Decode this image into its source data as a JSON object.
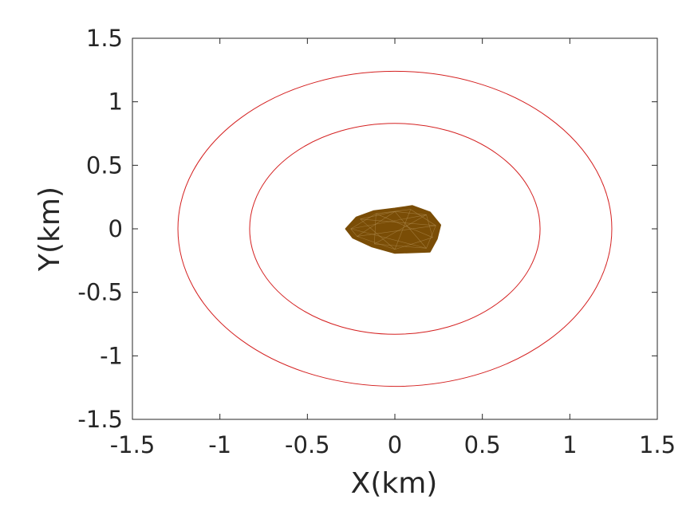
{
  "chart_data": {
    "type": "line",
    "xlabel": "X(km)",
    "ylabel": "Y(km)",
    "xlim": [
      -1.5,
      1.5
    ],
    "ylim": [
      -1.5,
      1.5
    ],
    "x_ticks": [
      -1.5,
      -1,
      -0.5,
      0,
      0.5,
      1,
      1.5
    ],
    "x_tick_labels": [
      "-1.5",
      "-1",
      "-0.5",
      "0",
      "0.5",
      "1",
      "1.5"
    ],
    "y_ticks": [
      -1.5,
      -1,
      -0.5,
      0,
      0.5,
      1,
      1.5
    ],
    "y_tick_labels": [
      "-1.5",
      "-1",
      "-0.5",
      "0",
      "0.5",
      "1",
      "1.5"
    ],
    "grid": false,
    "series": [
      {
        "kind": "circle",
        "center": [
          0,
          0
        ],
        "radius": 1.24,
        "color": "#d42020"
      },
      {
        "kind": "circle",
        "center": [
          0,
          0
        ],
        "radius": 0.83,
        "color": "#d42020"
      },
      {
        "kind": "filled-shape",
        "color": "#7a4d06",
        "outline": [
          [
            -0.28,
            0.0
          ],
          [
            -0.22,
            0.09
          ],
          [
            -0.12,
            0.14
          ],
          [
            0.0,
            0.16
          ],
          [
            0.1,
            0.18
          ],
          [
            0.2,
            0.13
          ],
          [
            0.26,
            0.03
          ],
          [
            0.24,
            -0.08
          ],
          [
            0.2,
            -0.18
          ],
          [
            0.0,
            -0.19
          ],
          [
            -0.13,
            -0.14
          ],
          [
            -0.24,
            -0.07
          ]
        ]
      }
    ]
  }
}
